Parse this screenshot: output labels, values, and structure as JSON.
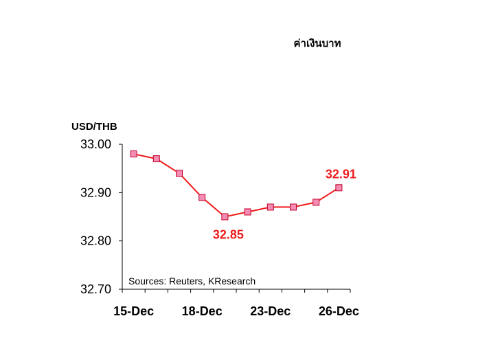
{
  "chart_data": {
    "type": "line",
    "title": "ค่าเงินบาท",
    "unit_label": "USD/THB",
    "x": [
      "15-Dec",
      "16-Dec",
      "17-Dec",
      "18-Dec",
      "19-Dec",
      "22-Dec",
      "23-Dec",
      "24-Dec",
      "25-Dec",
      "26-Dec"
    ],
    "x_tick_labels": [
      "15-Dec",
      "18-Dec",
      "23-Dec",
      "26-Dec"
    ],
    "series": [
      {
        "values": [
          32.98,
          32.97,
          32.94,
          32.89,
          32.85,
          32.86,
          32.87,
          32.87,
          32.88,
          32.91
        ]
      }
    ],
    "y_tick_labels": [
      "33.00",
      "32.90",
      "32.80",
      "32.70"
    ],
    "ylim": [
      32.7,
      33.0
    ],
    "data_labels": [
      {
        "index": 4,
        "text": "32.85",
        "placement": "below"
      },
      {
        "index": 9,
        "text": "32.91",
        "placement": "above"
      }
    ],
    "annotation": "Sources: Reuters, KResearch",
    "grid": false,
    "legend": "none",
    "colors": {
      "line": "#ee1c1c",
      "marker": "#f48cb4",
      "marker_edge": "#c0002a",
      "label": "#ee1c1c"
    }
  }
}
